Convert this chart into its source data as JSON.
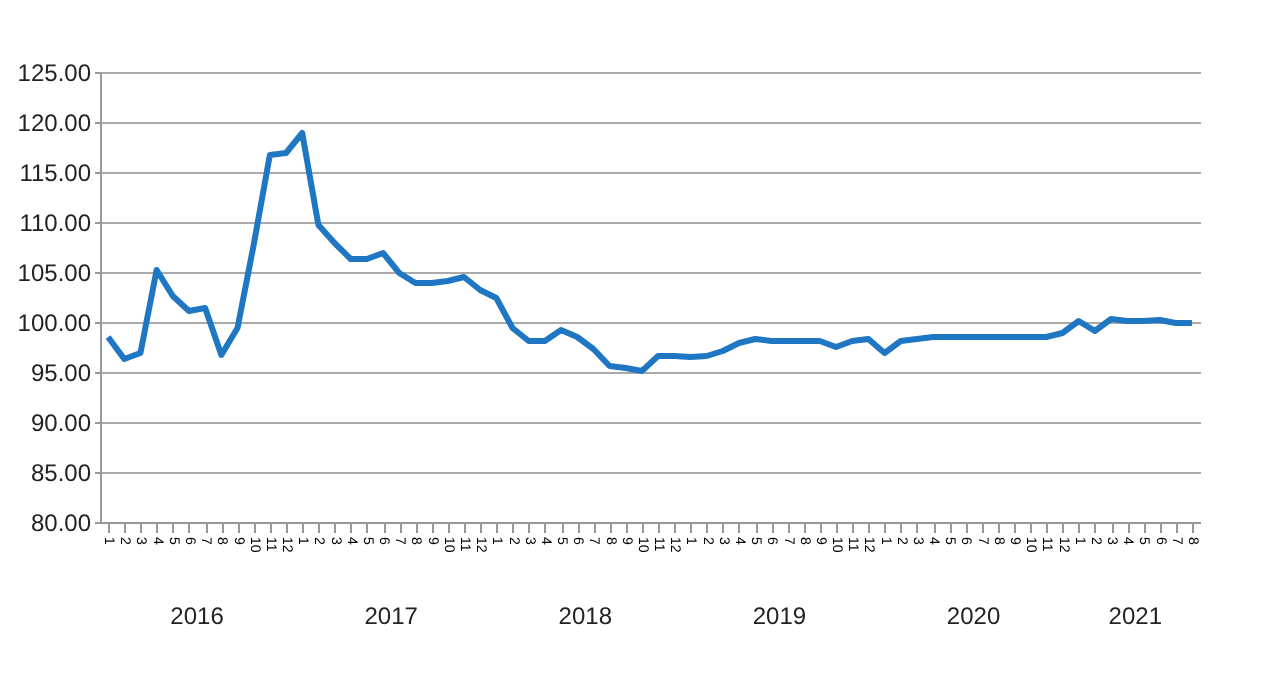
{
  "chart_data": {
    "type": "line",
    "categories": [
      "1",
      "2",
      "3",
      "4",
      "5",
      "6",
      "7",
      "8",
      "9",
      "10",
      "11",
      "12",
      "1",
      "2",
      "3",
      "4",
      "5",
      "6",
      "7",
      "8",
      "9",
      "10",
      "11",
      "12",
      "1",
      "2",
      "3",
      "4",
      "5",
      "6",
      "7",
      "8",
      "9",
      "10",
      "11",
      "12",
      "1",
      "2",
      "3",
      "4",
      "5",
      "6",
      "7",
      "8",
      "9",
      "10",
      "11",
      "12",
      "1",
      "2",
      "3",
      "4",
      "5",
      "6",
      "7",
      "8",
      "9",
      "10",
      "11",
      "12",
      "1",
      "2",
      "3",
      "4",
      "5",
      "6",
      "7",
      "8"
    ],
    "series": [
      {
        "color": "#1f77c4",
        "values": [
          98.5,
          96.3,
          96.9,
          105.2,
          102.6,
          101.1,
          101.4,
          96.7,
          99.4,
          107.7,
          116.7,
          116.9,
          118.9,
          109.7,
          107.9,
          106.3,
          106.3,
          106.9,
          104.9,
          103.9,
          103.9,
          104.1,
          104.5,
          103.2,
          102.4,
          99.4,
          98.1,
          98.1,
          99.2,
          98.5,
          97.3,
          95.6,
          95.4,
          95.1,
          96.6,
          96.6,
          96.5,
          96.6,
          97.1,
          97.9,
          98.3,
          98.1,
          98.1,
          98.1,
          98.1,
          97.5,
          98.1,
          98.3,
          96.9,
          98.1,
          98.3,
          98.5,
          98.5,
          98.5,
          98.5,
          98.5,
          98.5,
          98.5,
          98.5,
          98.9,
          100.1,
          99.1,
          100.3,
          100.1,
          100.1,
          100.2,
          99.9,
          99.9
        ]
      }
    ],
    "ylim": [
      80,
      125
    ],
    "yticks": [
      {
        "value": 80,
        "label": "80.00"
      },
      {
        "value": 85,
        "label": "85.00"
      },
      {
        "value": 90,
        "label": "90.00"
      },
      {
        "value": 95,
        "label": "95.00"
      },
      {
        "value": 100,
        "label": "100.00"
      },
      {
        "value": 105,
        "label": "105.00"
      },
      {
        "value": 110,
        "label": "110.00"
      },
      {
        "value": 115,
        "label": "115.00"
      },
      {
        "value": 120,
        "label": "120.00"
      },
      {
        "value": 125,
        "label": "125.00"
      }
    ],
    "grid": "y",
    "annotations": [
      "2016",
      "2017",
      "2018",
      "2019",
      "2020",
      "2021"
    ]
  }
}
